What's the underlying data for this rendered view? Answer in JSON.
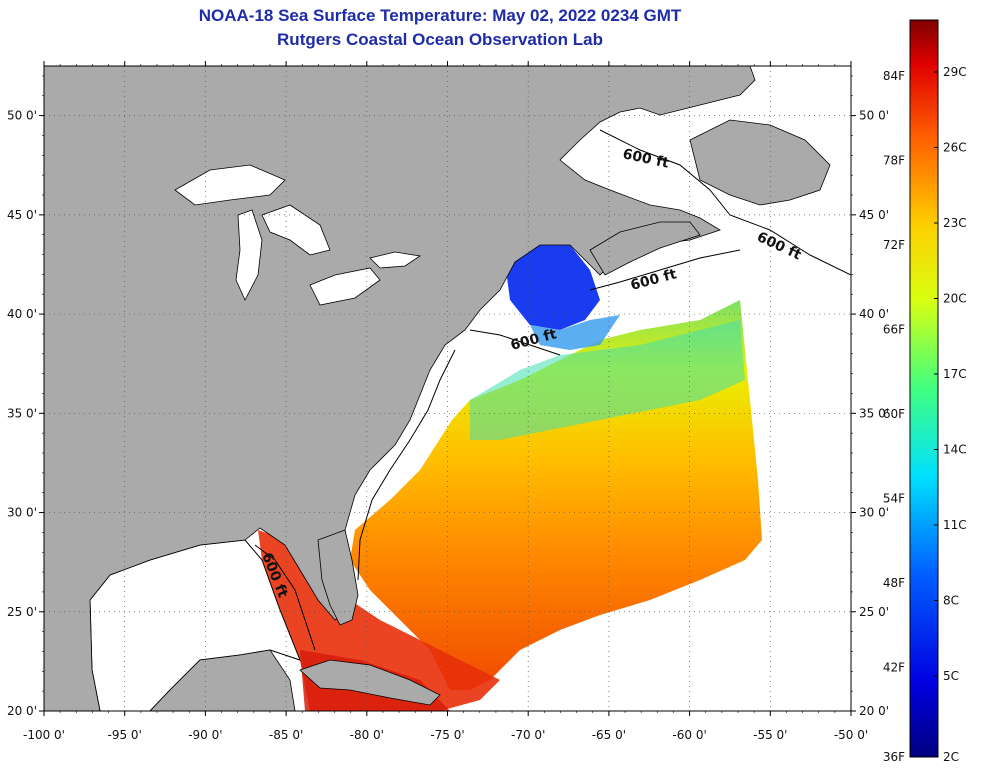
{
  "header": {
    "title": "NOAA-18 Sea Surface Temperature:  May 02, 2022 0234 GMT",
    "subtitle": "Rutgers Coastal Ocean Observation Lab"
  },
  "axes": {
    "lat_labels": [
      "50 0'",
      "45 0'",
      "40 0'",
      "35 0'",
      "30 0'",
      "25 0'",
      "20 0'"
    ],
    "lon_labels": [
      "-100 0'",
      "-95 0'",
      "-90 0'",
      "-85 0'",
      "-80 0'",
      "-75 0'",
      "-70 0'",
      "-65 0'",
      "-60 0'",
      "-55 0'",
      "-50 0'"
    ],
    "lat_values": [
      50,
      45,
      40,
      35,
      30,
      25,
      20
    ],
    "lon_values": [
      -100,
      -95,
      -90,
      -85,
      -80,
      -75,
      -70,
      -65,
      -60,
      -55,
      -50
    ],
    "lat_range": [
      20,
      52.5
    ],
    "lon_range": [
      -100,
      -50
    ],
    "grid": true
  },
  "contours": {
    "label": "600 ft",
    "count": 5
  },
  "colorbar": {
    "f_labels": [
      "84F",
      "78F",
      "72F",
      "66F",
      "60F",
      "54F",
      "48F",
      "42F",
      "36F"
    ],
    "c_labels": [
      "29C",
      "26C",
      "23C",
      "20C",
      "17C",
      "14C",
      "11C",
      "8C",
      "5C",
      "2C"
    ],
    "range_c": [
      2,
      31
    ]
  },
  "colors": {
    "land": "#aaaaaa",
    "cloud_or_nodata": "#ffffff",
    "title": "#1f2ca8"
  }
}
